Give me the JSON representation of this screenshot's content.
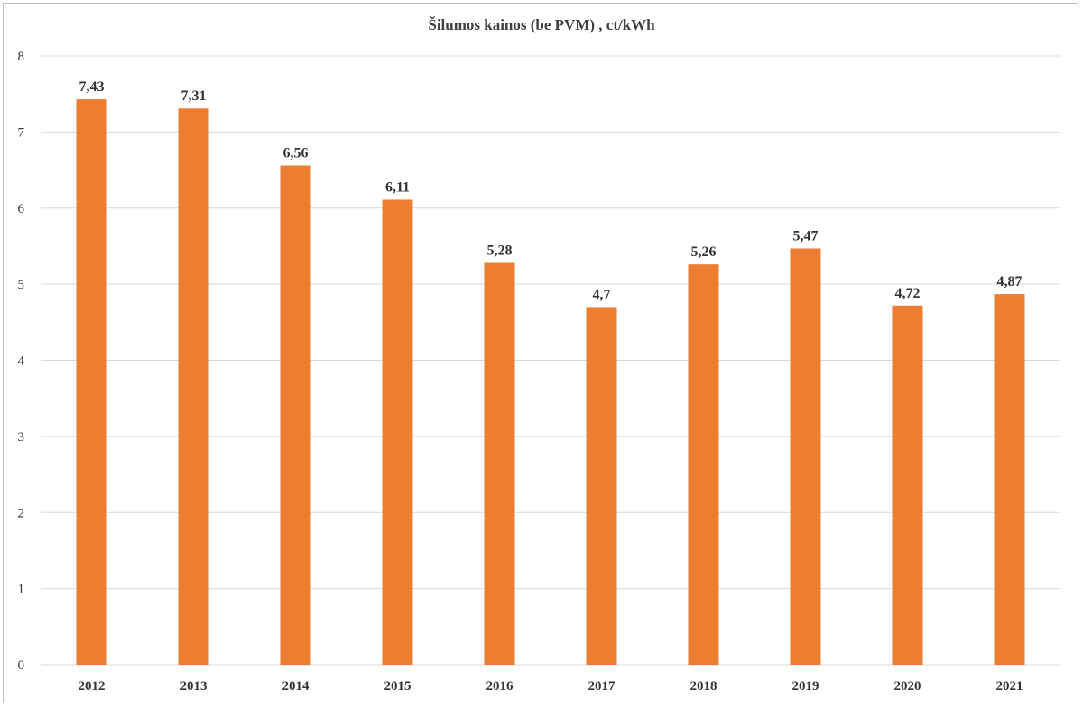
{
  "chart_data": {
    "type": "bar",
    "title": "Šilumos kainos (be PVM) , ct/kWh",
    "categories": [
      "2012",
      "2013",
      "2014",
      "2015",
      "2016",
      "2017",
      "2018",
      "2019",
      "2020",
      "2021"
    ],
    "values": [
      7.43,
      7.31,
      6.56,
      6.11,
      5.28,
      4.7,
      5.26,
      5.47,
      4.72,
      4.87
    ],
    "data_labels": [
      "7,43",
      "7,31",
      "6,56",
      "6,11",
      "5,28",
      "4,7",
      "5,26",
      "5,47",
      "4,72",
      "4,87"
    ],
    "yticks": [
      "0",
      "1",
      "2",
      "3",
      "4",
      "5",
      "6",
      "7",
      "8"
    ],
    "ylim": [
      0,
      8
    ],
    "xlabel": "",
    "ylabel": "",
    "grid": true,
    "legend": "none",
    "bar_color": "#ED7D31",
    "grid_color": "#d9d9d9"
  }
}
